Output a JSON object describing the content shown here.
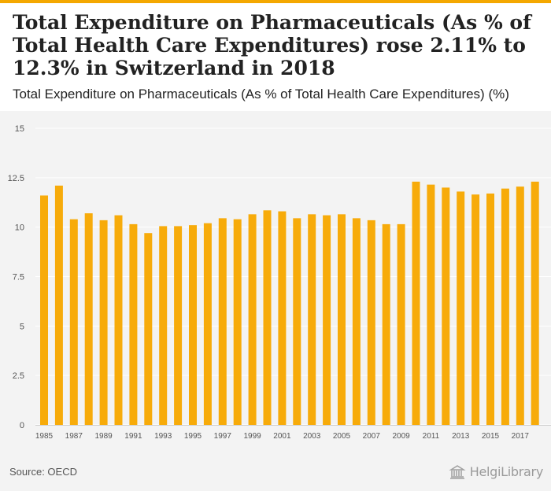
{
  "header": {
    "title": "Total Expenditure on Pharmaceuticals (As % of Total Health Care Expenditures) rose 2.11% to 12.3% in Switzerland in 2018",
    "subtitle": "Total Expenditure on Pharmaceuticals (As % of Total Health Care Expenditures) (%)"
  },
  "footer": {
    "source": "Source: OECD",
    "logo_text": "HelgiLibrary"
  },
  "colors": {
    "bar": "#f7ab0a",
    "accent": "#f4a800",
    "panel_background": "#f3f3f3",
    "grid": "#ffffff"
  },
  "chart_data": {
    "type": "bar",
    "title": "Total Expenditure on Pharmaceuticals (As % of Total Health Care Expenditures) rose 2.11% to 12.3% in Switzerland in 2018",
    "xlabel": "",
    "ylabel": "",
    "ylim": [
      0,
      15
    ],
    "yticks": [
      0,
      2.5,
      5,
      7.5,
      10,
      12.5,
      15
    ],
    "ytick_labels": [
      "0",
      "2.5",
      "5",
      "7.5",
      "10",
      "12.5",
      "15"
    ],
    "grid": true,
    "categories": [
      "1985",
      "1986",
      "1987",
      "1988",
      "1989",
      "1990",
      "1991",
      "1992",
      "1993",
      "1994",
      "1995",
      "1996",
      "1997",
      "1998",
      "1999",
      "2000",
      "2001",
      "2002",
      "2003",
      "2004",
      "2005",
      "2006",
      "2007",
      "2008",
      "2009",
      "2010",
      "2011",
      "2012",
      "2013",
      "2014",
      "2015",
      "2016",
      "2017",
      "2018"
    ],
    "xtick_labels": [
      "1985",
      "",
      "1987",
      "",
      "1989",
      "",
      "1991",
      "",
      "1993",
      "",
      "1995",
      "",
      "1997",
      "",
      "1999",
      "",
      "2001",
      "",
      "2003",
      "",
      "2005",
      "",
      "2007",
      "",
      "2009",
      "",
      "2011",
      "",
      "2013",
      "",
      "2015",
      "",
      "2017",
      ""
    ],
    "values": [
      11.6,
      12.1,
      10.4,
      10.7,
      10.35,
      10.6,
      10.15,
      9.7,
      10.05,
      10.05,
      10.1,
      10.2,
      10.45,
      10.4,
      10.65,
      10.85,
      10.8,
      10.45,
      10.65,
      10.6,
      10.65,
      10.45,
      10.35,
      10.15,
      10.15,
      12.3,
      12.15,
      12.0,
      11.8,
      11.65,
      11.7,
      11.95,
      12.05,
      12.3
    ]
  }
}
